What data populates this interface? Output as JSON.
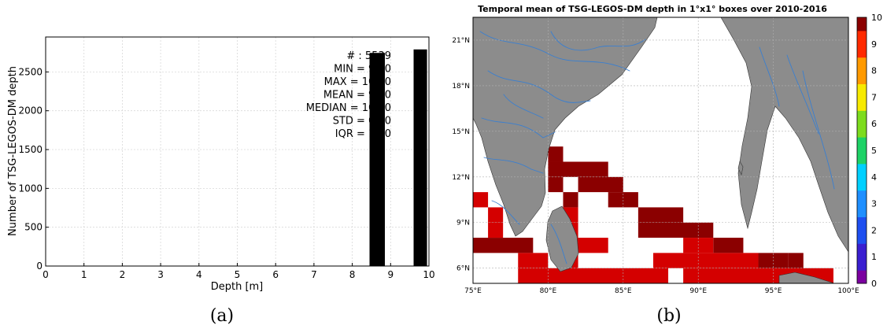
{
  "captions": {
    "a": "(a)",
    "b": "(b)"
  },
  "chart_data": [
    {
      "type": "bar",
      "title": "",
      "xlabel": "Depth [m]",
      "ylabel": "Number of TSG-LEGOS-DM depth",
      "xlim": [
        0,
        10
      ],
      "ylim": [
        0,
        2950
      ],
      "xticks": [
        "0",
        "1",
        "2",
        "3",
        "4",
        "5",
        "6",
        "7",
        "8",
        "9",
        "10"
      ],
      "yticks": [
        "0",
        "500",
        "1000",
        "1500",
        "2000",
        "2500"
      ],
      "grid": true,
      "bars": [
        {
          "x0": 8.45,
          "x1": 8.85,
          "value": 2745
        },
        {
          "x0": 9.6,
          "x1": 9.95,
          "value": 2790
        }
      ],
      "stats": [
        "# : 5539",
        "MIN = 9.00",
        "MAX =  10.00",
        "MEAN = 9.50",
        "MEDIAN = 10.00",
        "STD = 0.50",
        "IQR = 1.00"
      ],
      "bar_color": "#000000"
    },
    {
      "type": "heatmap",
      "title": "Temporal mean of TSG-LEGOS-DM depth in 1°x1° boxes over 2010-2016",
      "xlim": [
        75,
        100
      ],
      "ylim": [
        5,
        22.5
      ],
      "xticks": [
        {
          "v": 75,
          "label": "75°E"
        },
        {
          "v": 80,
          "label": "80°E"
        },
        {
          "v": 85,
          "label": "85°E"
        },
        {
          "v": 90,
          "label": "90°E"
        },
        {
          "v": 95,
          "label": "95°E"
        },
        {
          "v": 100,
          "label": "100°E"
        }
      ],
      "yticks": [
        {
          "v": 6,
          "label": "6°N"
        },
        {
          "v": 9,
          "label": "9°N"
        },
        {
          "v": 12,
          "label": "12°N"
        },
        {
          "v": 15,
          "label": "15°N"
        },
        {
          "v": 18,
          "label": "18°N"
        },
        {
          "v": 21,
          "label": "21°N"
        }
      ],
      "colorbar": {
        "min": 0,
        "max": 10,
        "ticks": [
          "0",
          "1",
          "2",
          "3",
          "4",
          "5",
          "6",
          "7",
          "8",
          "9",
          "10"
        ]
      },
      "colors": {
        "red": "#d40000",
        "darkred": "#8b0000",
        "land": "#8c8c8c",
        "river": "#3a7fd0"
      },
      "cells": [
        {
          "lon": 80,
          "lat": 13,
          "w": 1,
          "h": 1,
          "v": 10
        },
        {
          "lon": 80,
          "lat": 12,
          "w": 4,
          "h": 1,
          "v": 10
        },
        {
          "lon": 80,
          "lat": 11,
          "w": 1,
          "h": 1,
          "v": 10
        },
        {
          "lon": 82,
          "lat": 11,
          "w": 3,
          "h": 1,
          "v": 10
        },
        {
          "lon": 84,
          "lat": 10,
          "w": 2,
          "h": 1,
          "v": 10
        },
        {
          "lon": 86,
          "lat": 9,
          "w": 3,
          "h": 1,
          "v": 10
        },
        {
          "lon": 81,
          "lat": 10,
          "w": 1,
          "h": 1,
          "v": 10
        },
        {
          "lon": 86,
          "lat": 8,
          "w": 5,
          "h": 1,
          "v": 10
        },
        {
          "lon": 91,
          "lat": 7,
          "w": 2,
          "h": 1,
          "v": 10
        },
        {
          "lon": 75,
          "lat": 7,
          "w": 4,
          "h": 1,
          "v": 10
        },
        {
          "lon": 94,
          "lat": 6,
          "w": 2,
          "h": 1,
          "v": 10
        },
        {
          "lon": 75,
          "lat": 10,
          "w": 1,
          "h": 1,
          "v": 9
        },
        {
          "lon": 76,
          "lat": 9,
          "w": 1,
          "h": 1,
          "v": 9
        },
        {
          "lon": 76,
          "lat": 8,
          "w": 1,
          "h": 1,
          "v": 9
        },
        {
          "lon": 81,
          "lat": 9,
          "w": 1,
          "h": 1,
          "v": 9
        },
        {
          "lon": 81,
          "lat": 8,
          "w": 1,
          "h": 1,
          "v": 9
        },
        {
          "lon": 81,
          "lat": 7,
          "w": 3,
          "h": 1,
          "v": 9
        },
        {
          "lon": 78,
          "lat": 6,
          "w": 2,
          "h": 1,
          "v": 9
        },
        {
          "lon": 81,
          "lat": 6,
          "w": 1,
          "h": 1,
          "v": 9
        },
        {
          "lon": 84,
          "lat": 10,
          "w": 0,
          "h": 0,
          "v": 9
        },
        {
          "lon": 89,
          "lat": 7,
          "w": 2,
          "h": 1,
          "v": 9
        },
        {
          "lon": 87,
          "lat": 6,
          "w": 7,
          "h": 1,
          "v": 9
        },
        {
          "lon": 78,
          "lat": 5,
          "w": 10,
          "h": 1,
          "v": 9
        },
        {
          "lon": 89,
          "lat": 5,
          "w": 10,
          "h": 1,
          "v": 9
        },
        {
          "lon": 93,
          "lat": 7,
          "w": 2,
          "h": 0,
          "v": 9
        },
        {
          "lon": 96,
          "lat": 6,
          "w": 1,
          "h": 1,
          "v": 10
        }
      ]
    }
  ]
}
